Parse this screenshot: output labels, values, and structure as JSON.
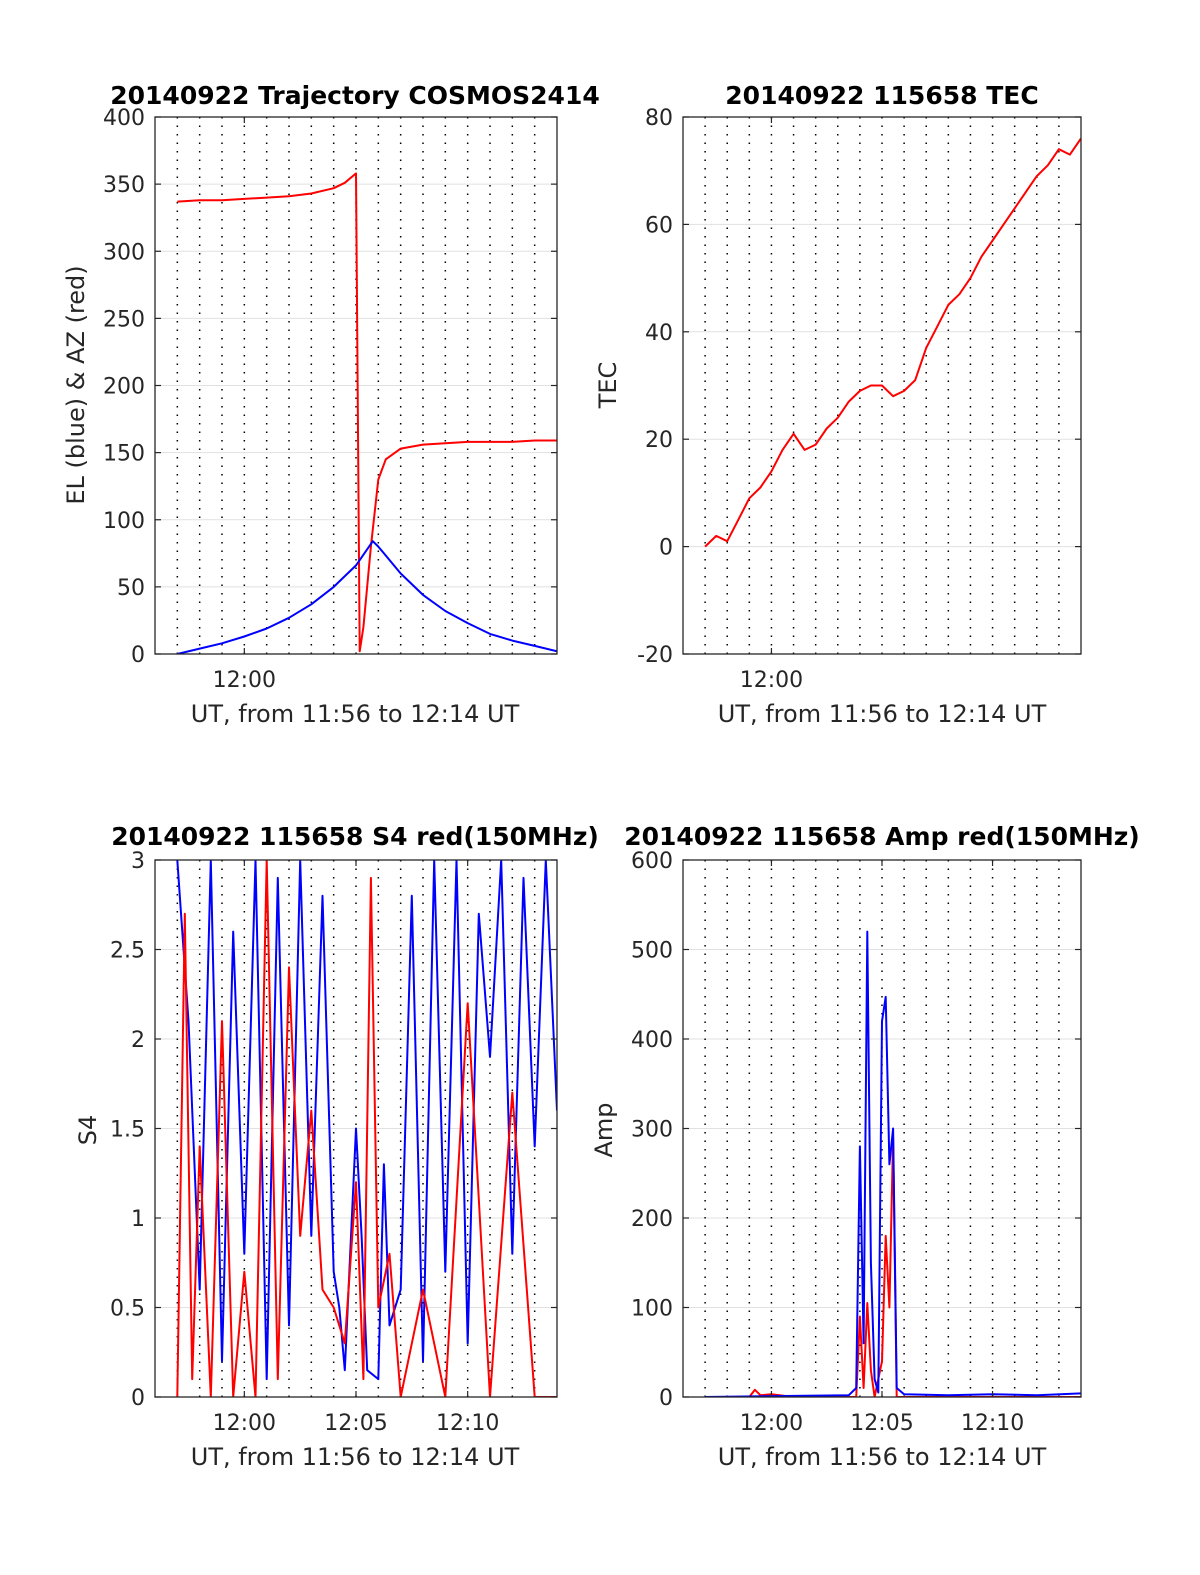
{
  "figure": {
    "grid_color": "#e1e1e1",
    "dotted_color": "#000000",
    "colors": {
      "red": "#ff0000",
      "blue": "#0000ff"
    }
  },
  "chart_data": [
    {
      "id": "trajectory",
      "type": "line",
      "title": "20140922 Trajectory COSMOS2414",
      "xlabel": "UT, from 11:56 to 12:14 UT",
      "ylabel": "EL (blue) & AZ (red)",
      "xlim": [
        "11:56",
        "12:14"
      ],
      "ylim": [
        0,
        400
      ],
      "yticks": [
        0,
        50,
        100,
        150,
        200,
        250,
        300,
        350,
        400
      ],
      "ytick_labels": [
        "0",
        "50",
        "100",
        "150",
        "200",
        "250",
        "300",
        "350",
        "400"
      ],
      "xticks": [
        "12:00"
      ],
      "grid": true,
      "vertical_dotted_lines": [
        "11:57",
        "11:58",
        "11:59",
        "12:00",
        "12:01",
        "12:02",
        "12:03",
        "12:04",
        "12:05",
        "12:06",
        "12:07",
        "12:08",
        "12:09",
        "12:10",
        "12:11",
        "12:12",
        "12:13"
      ],
      "series": [
        {
          "color": "#ff0000",
          "x": [
            "11:57",
            "11:58",
            "11:59",
            "12:00",
            "12:01",
            "12:02",
            "12:03",
            "12:04",
            "12:04:30",
            "12:05",
            "12:05:10",
            "12:05:20",
            "12:05:40",
            "12:06",
            "12:06:20",
            "12:07",
            "12:08",
            "12:09",
            "12:10",
            "12:11",
            "12:12",
            "12:13",
            "12:14"
          ],
          "y": [
            337,
            338,
            338,
            339,
            340,
            341,
            343,
            347,
            351,
            358,
            2,
            20,
            80,
            130,
            145,
            153,
            156,
            157,
            158,
            158,
            158,
            159,
            159
          ]
        },
        {
          "color": "#0000ff",
          "x": [
            "11:57",
            "11:58",
            "11:59",
            "12:00",
            "12:01",
            "12:02",
            "12:03",
            "12:04",
            "12:05",
            "12:05:45",
            "12:06",
            "12:07",
            "12:08",
            "12:09",
            "12:10",
            "12:11",
            "12:12",
            "12:13",
            "12:14"
          ],
          "y": [
            0,
            4,
            8,
            13,
            19,
            27,
            37,
            50,
            66,
            84,
            80,
            60,
            44,
            32,
            23,
            15,
            10,
            6,
            2
          ]
        }
      ]
    },
    {
      "id": "tec",
      "type": "line",
      "title": "20140922 115658 TEC",
      "xlabel": "UT, from 11:56 to 12:14 UT",
      "ylabel": "TEC",
      "xlim": [
        "11:56",
        "12:14"
      ],
      "ylim": [
        -20,
        80
      ],
      "yticks": [
        -20,
        0,
        20,
        40,
        60,
        80
      ],
      "ytick_labels": [
        "-20",
        "0",
        "20",
        "40",
        "60",
        "80"
      ],
      "xticks": [
        "12:00"
      ],
      "grid": true,
      "vertical_dotted_lines": [
        "11:57",
        "11:58",
        "11:59",
        "12:00",
        "12:01",
        "12:02",
        "12:03",
        "12:04",
        "12:05",
        "12:06",
        "12:07",
        "12:08",
        "12:09",
        "12:10",
        "12:11",
        "12:12",
        "12:13"
      ],
      "series": [
        {
          "color": "#ff0000",
          "x": [
            "11:57",
            "11:57:30",
            "11:58",
            "11:58:30",
            "11:59",
            "11:59:30",
            "12:00",
            "12:00:30",
            "12:01",
            "12:01:30",
            "12:02",
            "12:02:30",
            "12:03",
            "12:03:30",
            "12:04",
            "12:04:30",
            "12:05",
            "12:05:30",
            "12:06",
            "12:06:30",
            "12:07",
            "12:07:30",
            "12:08",
            "12:08:30",
            "12:09",
            "12:09:30",
            "12:10",
            "12:10:30",
            "12:11",
            "12:11:30",
            "12:12",
            "12:12:30",
            "12:13",
            "12:13:30",
            "12:14"
          ],
          "y": [
            0,
            2,
            1,
            5,
            9,
            11,
            14,
            18,
            21,
            18,
            19,
            22,
            24,
            27,
            29,
            30,
            30,
            28,
            29,
            31,
            37,
            41,
            45,
            47,
            50,
            54,
            57,
            60,
            63,
            66,
            69,
            71,
            74,
            73,
            76
          ]
        }
      ]
    },
    {
      "id": "s4",
      "type": "line",
      "title": "20140922 115658 S4 red(150MHz)",
      "xlabel": "UT, from 11:56 to 12:14 UT",
      "ylabel": "S4",
      "xlim": [
        "11:56",
        "12:14"
      ],
      "ylim": [
        0,
        3
      ],
      "yticks": [
        0,
        0.5,
        1,
        1.5,
        2,
        2.5,
        3
      ],
      "ytick_labels": [
        "0",
        "0.5",
        "1",
        "1.5",
        "2",
        "2.5",
        "3"
      ],
      "xticks": [
        "12:00",
        "12:05",
        "12:10"
      ],
      "grid": true,
      "vertical_dotted_lines": [
        "11:57",
        "11:58",
        "11:59",
        "12:00",
        "12:01",
        "12:02",
        "12:03",
        "12:04",
        "12:05",
        "12:06",
        "12:07",
        "12:08",
        "12:09",
        "12:10",
        "12:11",
        "12:12",
        "12:13"
      ],
      "series": [
        {
          "color": "#0000ff",
          "x": [
            "11:57",
            "11:57:30",
            "11:58",
            "11:58:30",
            "11:59",
            "11:59:30",
            "12:00",
            "12:00:30",
            "12:01",
            "12:01:30",
            "12:02",
            "12:02:30",
            "12:03",
            "12:03:30",
            "12:04",
            "12:04:15",
            "12:04:30",
            "12:05",
            "12:05:15",
            "12:05:30",
            "12:06",
            "12:06:15",
            "12:06:30",
            "12:07",
            "12:07:30",
            "12:08",
            "12:08:30",
            "12:09",
            "12:09:30",
            "12:10",
            "12:10:30",
            "12:11",
            "12:11:30",
            "12:12",
            "12:12:30",
            "12:13",
            "12:13:30",
            "12:14"
          ],
          "y": [
            3,
            2.1,
            0.6,
            3,
            0.2,
            2.6,
            0.8,
            3,
            0.1,
            2.9,
            0.4,
            3,
            0.9,
            2.8,
            0.7,
            0.5,
            0.15,
            1.5,
            0.9,
            0.15,
            0.1,
            1.3,
            0.4,
            0.6,
            2.8,
            0.2,
            3,
            0.7,
            3,
            0.3,
            2.7,
            1.9,
            3,
            0.8,
            2.9,
            1.4,
            3,
            1.6
          ]
        },
        {
          "color": "#ff0000",
          "x": [
            "11:57",
            "11:57:20",
            "11:57:40",
            "11:58",
            "11:58:30",
            "11:59",
            "11:59:30",
            "12:00",
            "12:00:30",
            "12:01",
            "12:01:30",
            "12:02",
            "12:02:30",
            "12:03",
            "12:03:30",
            "12:04",
            "12:04:30",
            "12:05",
            "12:05:20",
            "12:05:40",
            "12:06",
            "12:06:30",
            "12:07",
            "12:08",
            "12:09",
            "12:10",
            "12:11",
            "12:12",
            "12:13",
            "12:14"
          ],
          "y": [
            0,
            2.7,
            0.1,
            1.4,
            0,
            2.1,
            0,
            0.7,
            0,
            3,
            0.1,
            2.4,
            0.9,
            1.6,
            0.6,
            0.5,
            0.3,
            1.2,
            0.1,
            2.9,
            0.5,
            0.8,
            0,
            0.6,
            0,
            2.2,
            0,
            1.7,
            0,
            0
          ]
        }
      ]
    },
    {
      "id": "amp",
      "type": "line",
      "title": "20140922 115658 Amp red(150MHz)",
      "xlabel": "UT, from 11:56 to 12:14 UT",
      "ylabel": "Amp",
      "xlim": [
        "11:56",
        "12:14"
      ],
      "ylim": [
        0,
        600
      ],
      "yticks": [
        0,
        100,
        200,
        300,
        400,
        500,
        600
      ],
      "ytick_labels": [
        "0",
        "100",
        "200",
        "300",
        "400",
        "500",
        "600"
      ],
      "xticks": [
        "12:00",
        "12:05",
        "12:10"
      ],
      "grid": true,
      "vertical_dotted_lines": [
        "11:57",
        "11:58",
        "11:59",
        "12:00",
        "12:01",
        "12:02",
        "12:03",
        "12:04",
        "12:05",
        "12:06",
        "12:07",
        "12:08",
        "12:09",
        "12:10",
        "12:11",
        "12:12",
        "12:13"
      ],
      "series": [
        {
          "color": "#ff0000",
          "x": [
            "11:57",
            "11:59",
            "11:59:15",
            "11:59:30",
            "12:00",
            "12:01",
            "12:03:50",
            "12:04",
            "12:04:10",
            "12:04:20",
            "12:04:30",
            "12:04:40",
            "12:05",
            "12:05:10",
            "12:05:20",
            "12:05:30",
            "12:05:40",
            "12:06",
            "12:14"
          ],
          "y": [
            0,
            0,
            8,
            2,
            3,
            0,
            0,
            90,
            10,
            105,
            30,
            0,
            40,
            180,
            100,
            290,
            0,
            0,
            0
          ]
        },
        {
          "color": "#0000ff",
          "x": [
            "11:57",
            "12:03:30",
            "12:03:50",
            "12:04",
            "12:04:10",
            "12:04:20",
            "12:04:30",
            "12:04:40",
            "12:04:50",
            "12:05",
            "12:05:10",
            "12:05:20",
            "12:05:30",
            "12:05:40",
            "12:06",
            "12:08",
            "12:10",
            "12:12",
            "12:14"
          ],
          "y": [
            0,
            2,
            10,
            280,
            60,
            520,
            150,
            20,
            5,
            420,
            447,
            260,
            300,
            10,
            3,
            2,
            3,
            2,
            4
          ]
        }
      ]
    }
  ]
}
